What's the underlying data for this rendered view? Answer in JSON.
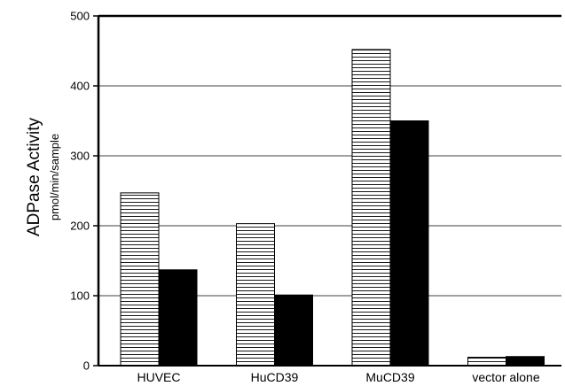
{
  "chart_data": {
    "type": "bar",
    "categories": [
      "HUVEC",
      "HuCD39",
      "MuCD39",
      "vector alone"
    ],
    "series": [
      {
        "values": [
          247,
          203,
          452,
          12
        ],
        "pattern": "horizontal-stripes",
        "color": "#000000"
      },
      {
        "values": [
          137,
          101,
          350,
          13
        ],
        "pattern": "solid",
        "color": "#000000"
      }
    ],
    "ylabel": "ADPase Activity",
    "ylabel_sub": "pmol/min/sample",
    "xlabel": "",
    "ylim": [
      0,
      500
    ],
    "yticks": [
      0,
      100,
      200,
      300,
      400,
      500
    ],
    "grid": true
  }
}
